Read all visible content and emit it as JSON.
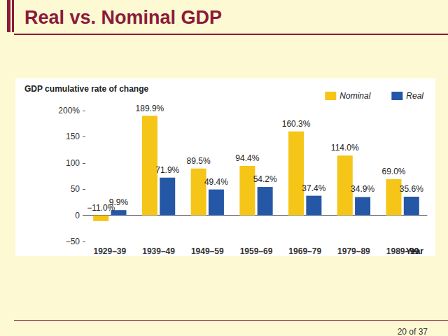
{
  "chart_data": {
    "type": "bar",
    "title": "Real vs. Nominal GDP",
    "y_label": "GDP cumulative rate of change",
    "x_label": "Year",
    "categories": [
      "1929–39",
      "1939–49",
      "1949–59",
      "1959–69",
      "1969–79",
      "1979–89",
      "1989–99"
    ],
    "series": [
      {
        "name": "Nominal",
        "color": "#f5c518",
        "values": [
          -11.0,
          189.9,
          89.5,
          94.4,
          160.3,
          114.0,
          69.0
        ],
        "value_labels": [
          "−11.0%",
          "189.9%",
          "89.5%",
          "94.4%",
          "160.3%",
          "114.0%",
          "69.0%"
        ]
      },
      {
        "name": "Real",
        "color": "#2457a6",
        "values": [
          9.9,
          71.9,
          49.4,
          54.2,
          37.4,
          34.9,
          35.6
        ],
        "value_labels": [
          "9.9%",
          "71.9%",
          "49.4%",
          "54.2%",
          "37.4%",
          "34.9%",
          "35.6%"
        ]
      }
    ],
    "ylim": [
      -50,
      200
    ],
    "yticks": [
      {
        "value": -50,
        "label": "−50"
      },
      0,
      50,
      100,
      150,
      {
        "value": 200,
        "label": "200%"
      }
    ],
    "grid": false,
    "legend": "top-right",
    "data_labels": true,
    "annotations": [
      "20 of 37"
    ]
  }
}
